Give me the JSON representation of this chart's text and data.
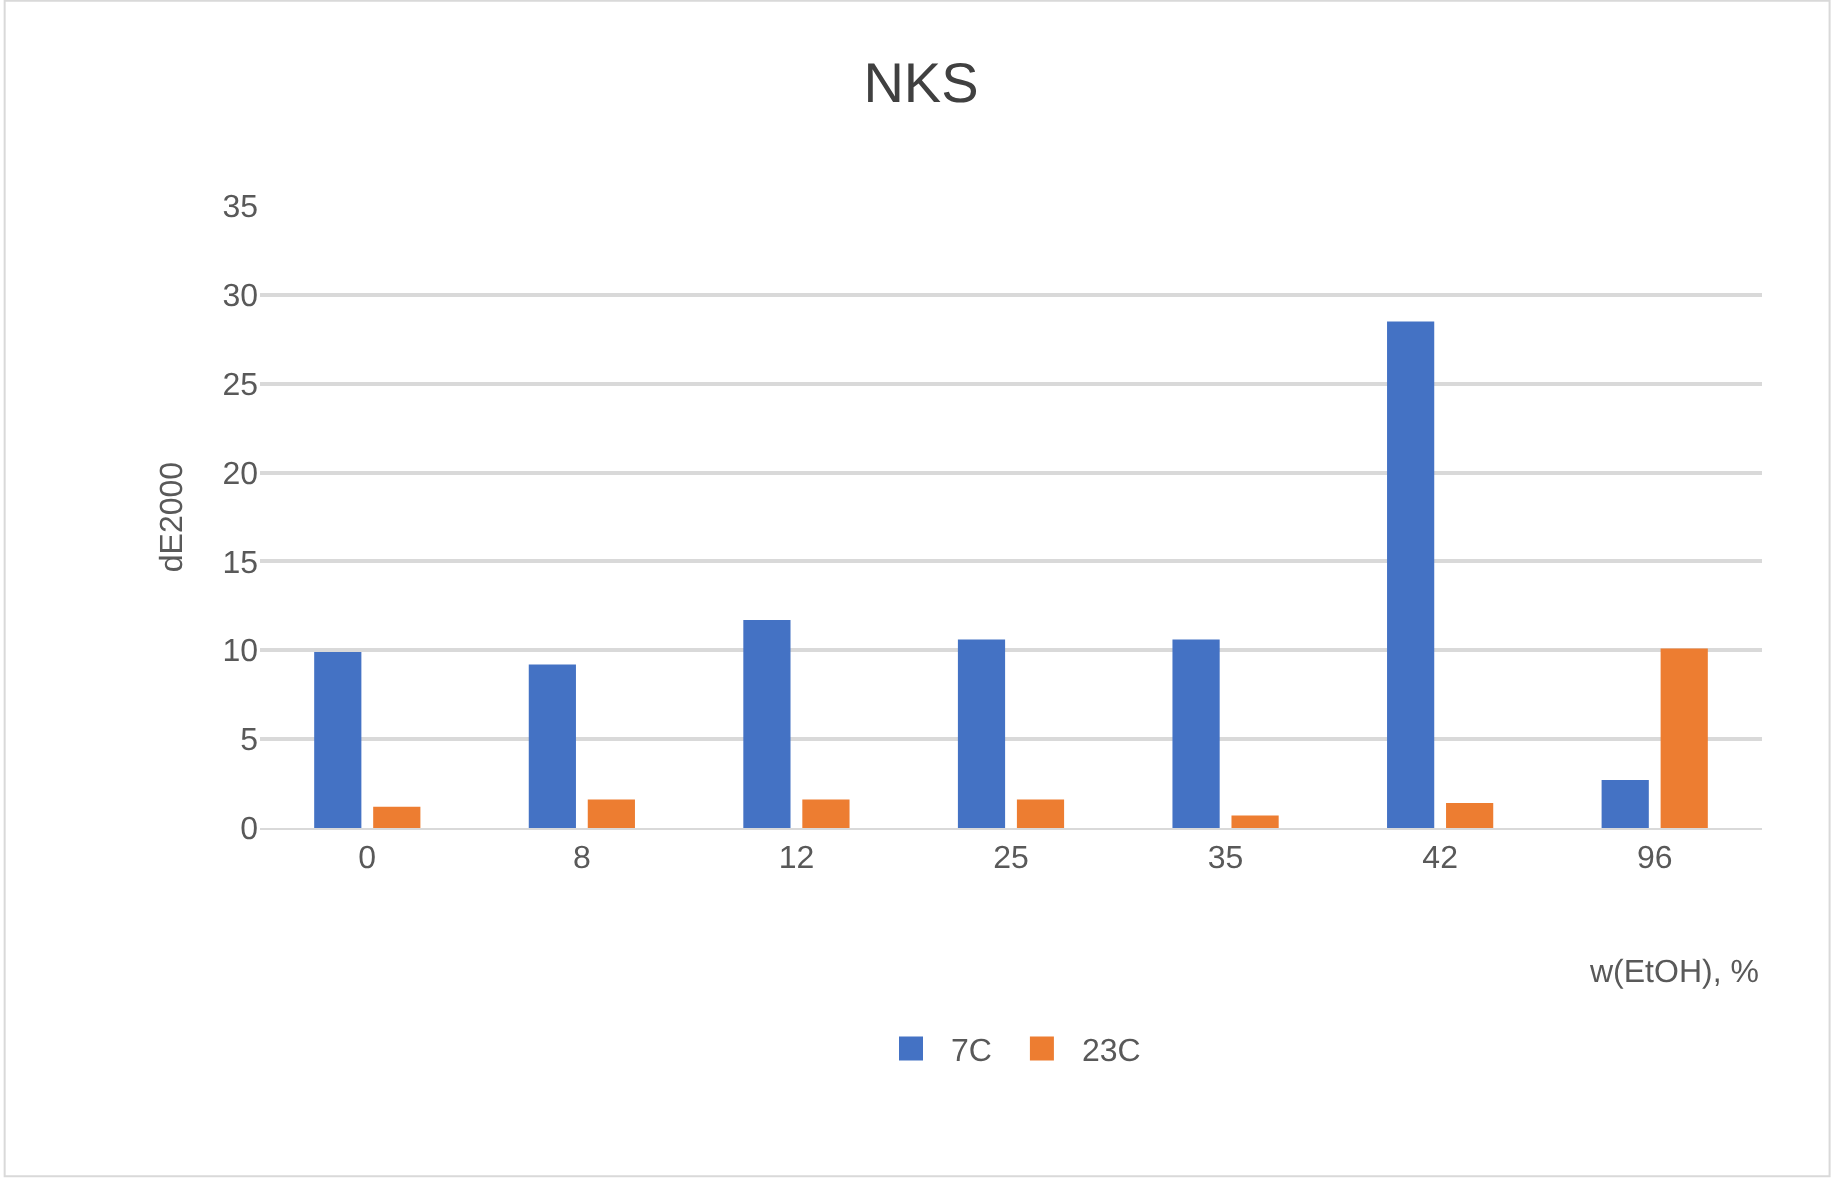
{
  "chart_data": {
    "type": "bar",
    "title": "NKS",
    "xlabel": "w(EtOH), %",
    "ylabel": "dE2000",
    "categories": [
      "0",
      "8",
      "12",
      "25",
      "35",
      "42",
      "96"
    ],
    "series": [
      {
        "name": "7C",
        "color": "#4472c4",
        "values": [
          9.9,
          9.2,
          11.7,
          10.6,
          10.6,
          28.5,
          2.7
        ]
      },
      {
        "name": "23C",
        "color": "#ed7d31",
        "values": [
          1.2,
          1.6,
          1.6,
          1.6,
          0.7,
          1.4,
          10.1
        ]
      }
    ],
    "ylim": [
      0,
      35
    ],
    "yticks": [
      0,
      5,
      10,
      15,
      20,
      25,
      30,
      35
    ],
    "grid": "y",
    "legend": "bottom"
  }
}
